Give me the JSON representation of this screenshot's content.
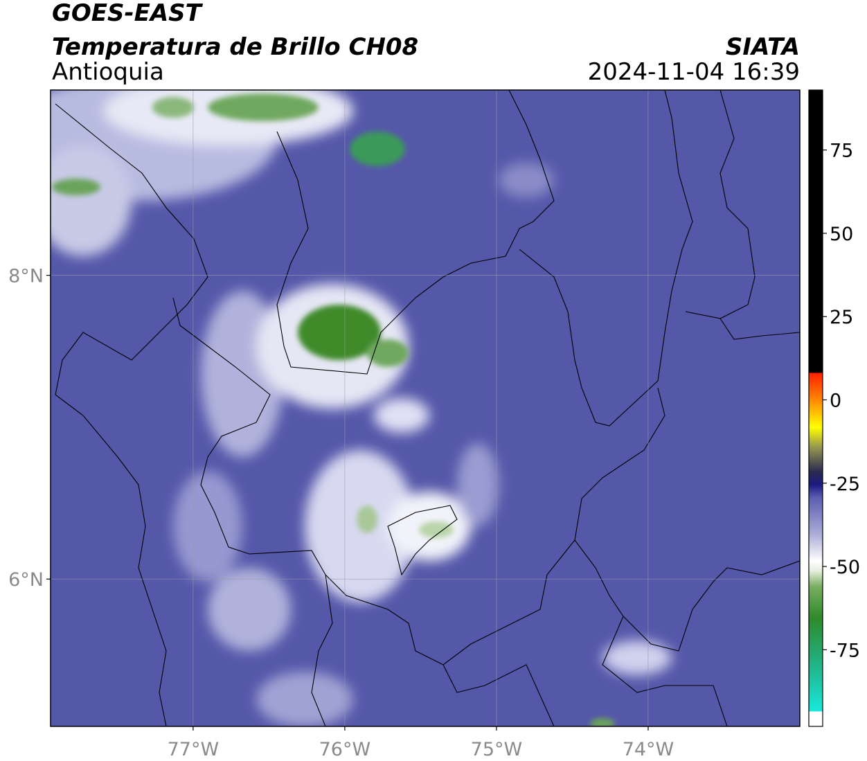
{
  "header": {
    "title": "GOES-EAST",
    "subtitle": "Temperatura de Brillo CH08",
    "region": "Antioquia",
    "source": "SIATA",
    "datetime": "2024-11-04 16:39"
  },
  "map": {
    "xlim": [
      -77.94,
      -73.0
    ],
    "ylim": [
      5.03,
      9.22
    ],
    "xticks": [
      {
        "value": -77,
        "label": "77°W"
      },
      {
        "value": -76,
        "label": "76°W"
      },
      {
        "value": -75,
        "label": "75°W"
      },
      {
        "value": -74,
        "label": "74°W"
      }
    ],
    "yticks": [
      {
        "value": 8,
        "label": "8°N"
      },
      {
        "value": 6,
        "label": "6°N"
      }
    ],
    "grid": true
  },
  "colorbar": {
    "lim": [
      -98,
      93
    ],
    "ticks": [
      75,
      50,
      25,
      0,
      -25,
      -50,
      -75
    ]
  }
}
